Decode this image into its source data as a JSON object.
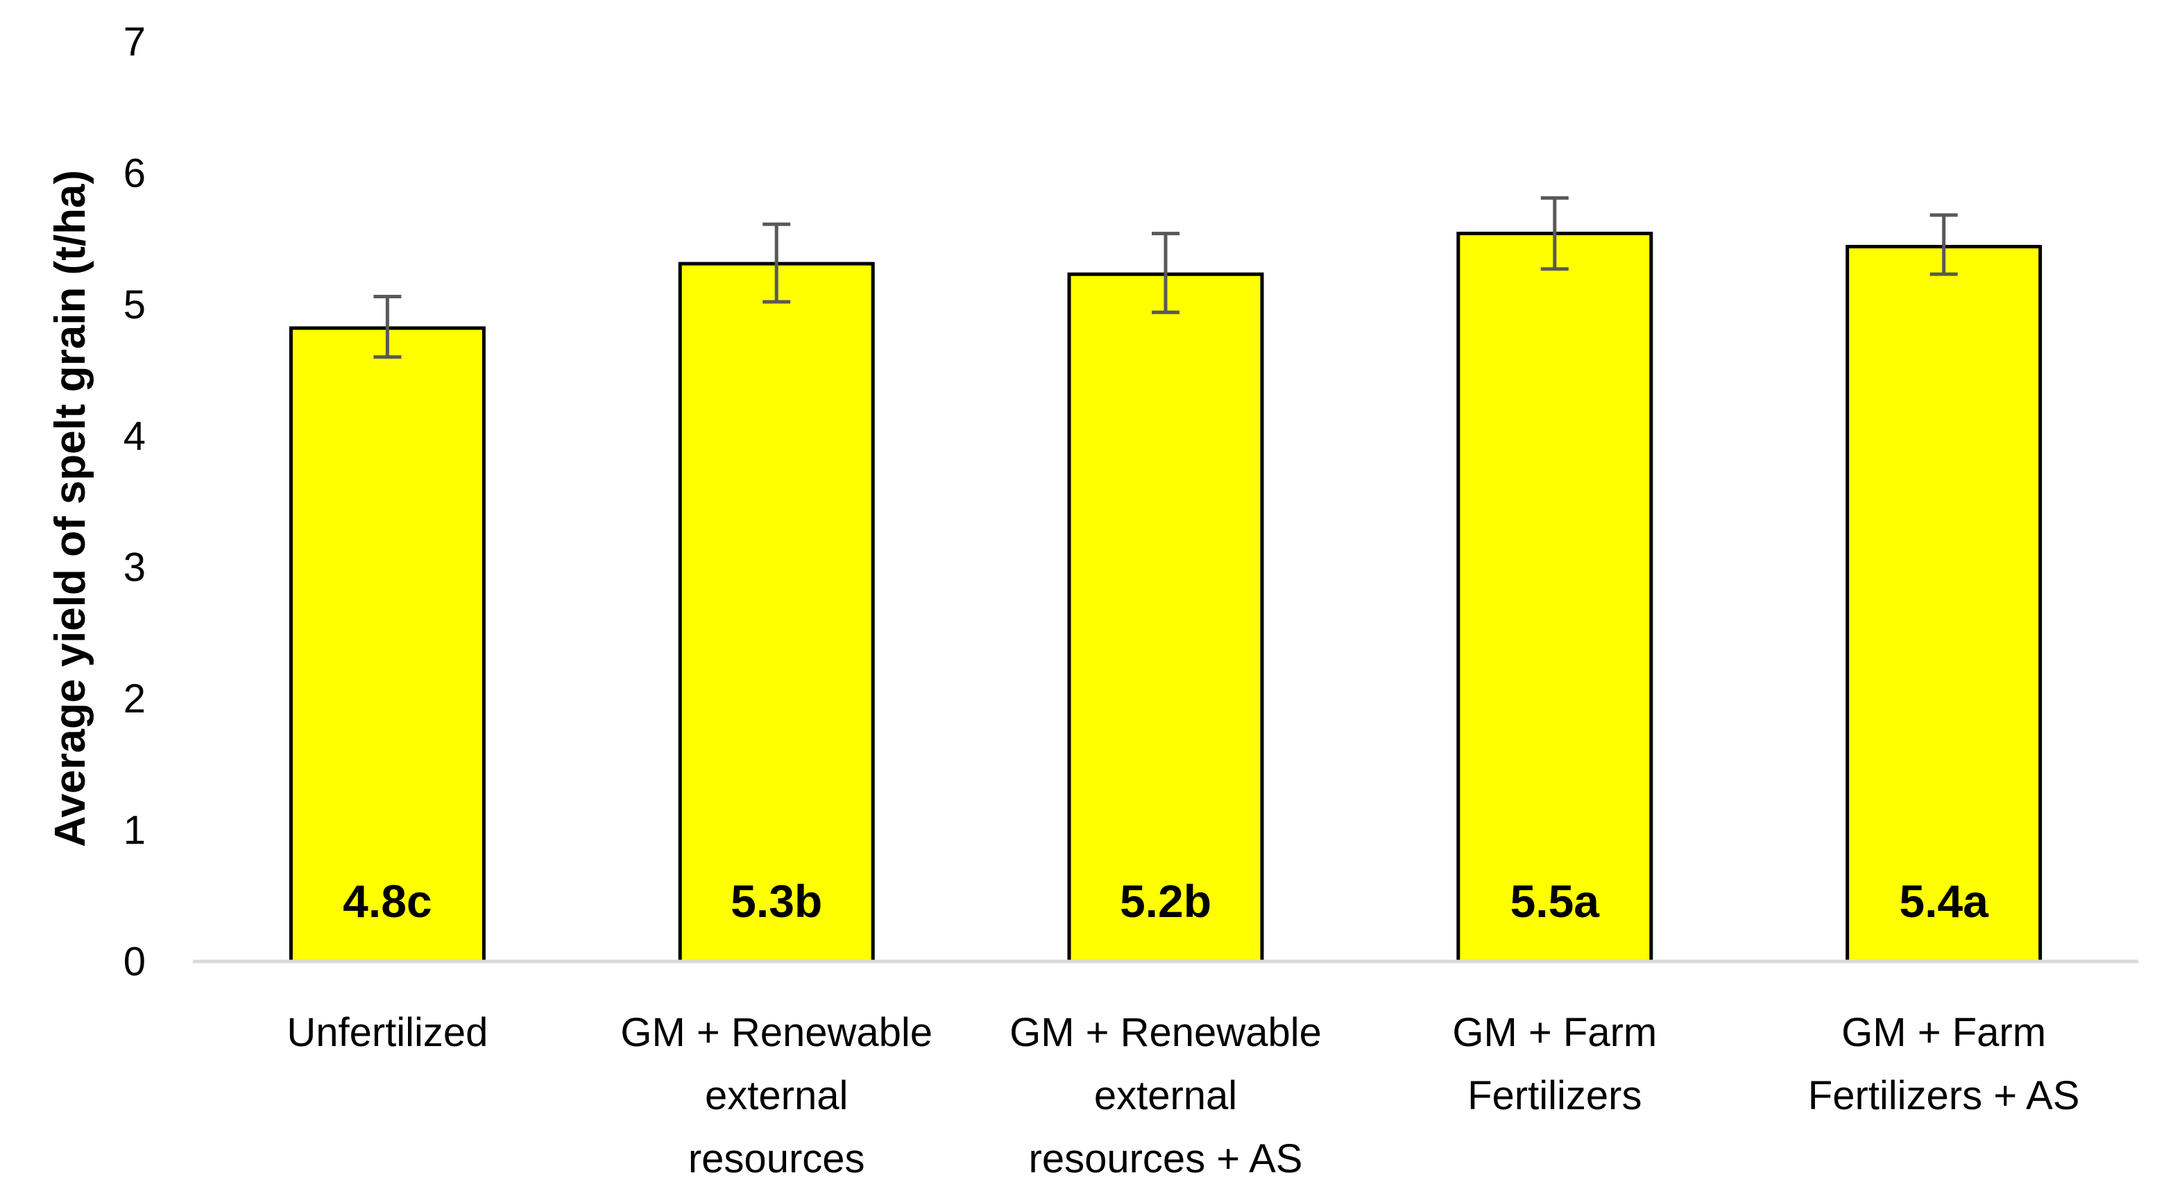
{
  "chart_data": {
    "type": "bar",
    "title": "",
    "xlabel": "",
    "ylabel": "Average yield of spelt grain (t/ha)",
    "ylim": [
      0,
      7
    ],
    "yticks": [
      "0",
      "1",
      "2",
      "3",
      "4",
      "5",
      "6",
      "7"
    ],
    "grid": false,
    "bar_color": "#FFFF00",
    "bar_edge_color": "#000000",
    "error_bar_color": "#595959",
    "axis_color": "#D9D9D9",
    "categories": [
      [
        "Unfertilized"
      ],
      [
        "GM + Renewable",
        "external",
        "resources"
      ],
      [
        "GM + Renewable",
        "external",
        "resources + AS"
      ],
      [
        "GM + Farm",
        "Fertilizers"
      ],
      [
        "GM + Farm",
        "Fertilizers + AS"
      ]
    ],
    "values": [
      4.82,
      5.31,
      5.23,
      5.54,
      5.44
    ],
    "error_low": [
      4.6,
      5.02,
      4.94,
      5.27,
      5.23
    ],
    "error_high": [
      5.06,
      5.61,
      5.54,
      5.81,
      5.68
    ],
    "data_labels": [
      "4.8c",
      "5.3b",
      "5.2b",
      "5.5a",
      "5.4a"
    ]
  }
}
